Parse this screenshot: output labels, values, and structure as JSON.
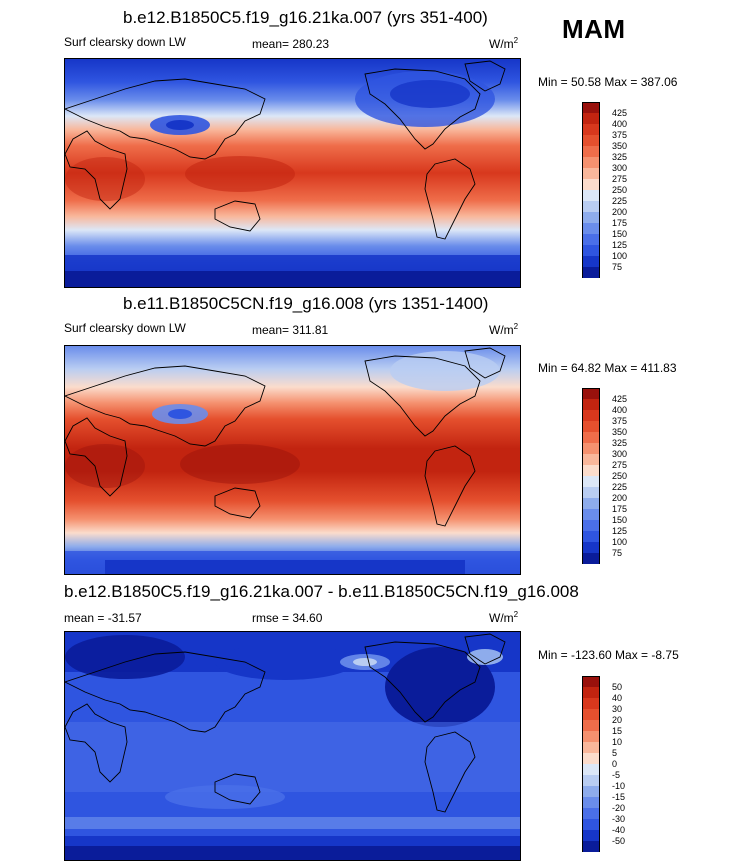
{
  "season": "MAM",
  "panels": [
    {
      "title": "b.e12.B1850C5.f19_g16.21ka.007 (yrs 351-400)",
      "left_label": "Surf clearsky down LW",
      "center_label": "mean= 280.23",
      "units": "W/m",
      "units_sup": "2",
      "minmax": "Min =  50.58 Max = 387.06",
      "kind": "abs",
      "levels": [
        "425",
        "400",
        "375",
        "350",
        "325",
        "300",
        "275",
        "250",
        "225",
        "200",
        "175",
        "150",
        "125",
        "100",
        "75"
      ]
    },
    {
      "title": "b.e11.B1850C5CN.f19_g16.008 (yrs 1351-1400)",
      "left_label": "Surf clearsky down LW",
      "center_label": "mean= 311.81",
      "units": "W/m",
      "units_sup": "2",
      "minmax": "Min =  64.82 Max = 411.83",
      "kind": "abs",
      "levels": [
        "425",
        "400",
        "375",
        "350",
        "325",
        "300",
        "275",
        "250",
        "225",
        "200",
        "175",
        "150",
        "125",
        "100",
        "75"
      ]
    },
    {
      "title": "b.e12.B1850C5.f19_g16.21ka.007 - b.e11.B1850C5CN.f19_g16.008",
      "left_label": "mean = -31.57",
      "center_label": "rmse =  34.60",
      "units": "W/m",
      "units_sup": "2",
      "minmax": "Min = -123.60 Max =  -8.75",
      "kind": "diff",
      "levels": [
        "50",
        "40",
        "30",
        "20",
        "15",
        "10",
        "5",
        "0",
        "-5",
        "-10",
        "-15",
        "-20",
        "-30",
        "-40",
        "-50"
      ]
    }
  ],
  "colors": {
    "abs": [
      "#99110c",
      "#c22410",
      "#d8381d",
      "#e5502e",
      "#ef6d4a",
      "#f5916f",
      "#f9b79b",
      "#fbdccc",
      "#dce7f7",
      "#b9cdf2",
      "#8eacec",
      "#6a8deb",
      "#4a6fe8",
      "#2f55e0",
      "#1636c8",
      "#0a1c9a"
    ],
    "diff": [
      "#99110c",
      "#c22410",
      "#d8381d",
      "#e5502e",
      "#ef6d4a",
      "#f5916f",
      "#f9b79b",
      "#fbdccc",
      "#dce7f7",
      "#b9cdf2",
      "#8eacec",
      "#6a8deb",
      "#4a6fe8",
      "#2f55e0",
      "#1636c8",
      "#0a1c9a"
    ]
  }
}
